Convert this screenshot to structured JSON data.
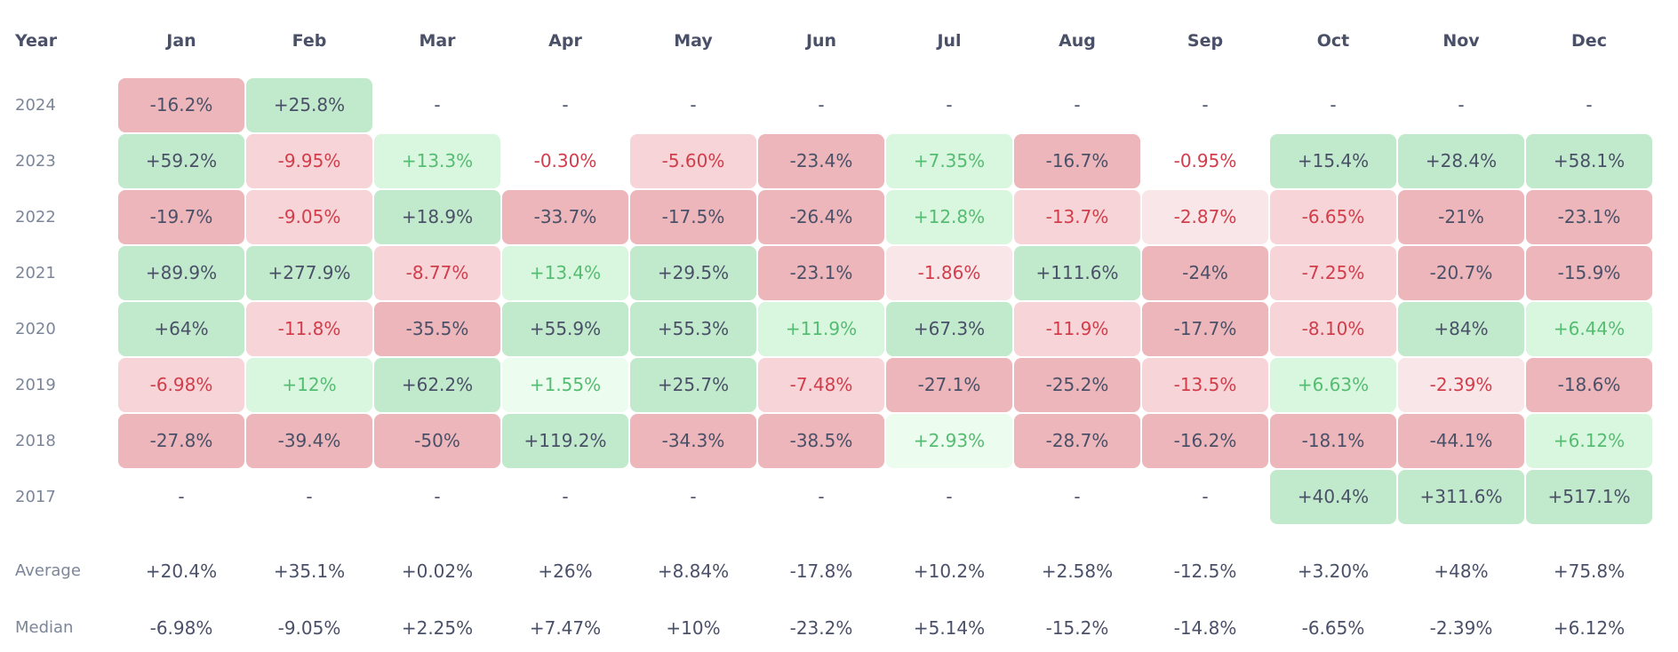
{
  "header": {
    "year_label": "Year",
    "months": [
      "Jan",
      "Feb",
      "Mar",
      "Apr",
      "May",
      "Jun",
      "Jul",
      "Aug",
      "Sep",
      "Oct",
      "Nov",
      "Dec"
    ]
  },
  "colors": {
    "red_text": "#d13d4a",
    "green_text": "#55bd72",
    "dark_text": "#4a5068",
    "red_strong_bg": "#ecb6ba",
    "red_light_bg": "#f6d4d8",
    "red_faint_bg": "#f9e6e8",
    "green_strong_bg": "#c1e9cb",
    "green_light_bg": "#d9f6df",
    "green_faint_bg": "#ecfcee"
  },
  "rows": [
    {
      "year": "2024",
      "cells": [
        {
          "v": "-16.2%",
          "lvl": "red3"
        },
        {
          "v": "+25.8%",
          "lvl": "green3"
        },
        {
          "v": "-",
          "lvl": "none"
        },
        {
          "v": "-",
          "lvl": "none"
        },
        {
          "v": "-",
          "lvl": "none"
        },
        {
          "v": "-",
          "lvl": "none"
        },
        {
          "v": "-",
          "lvl": "none"
        },
        {
          "v": "-",
          "lvl": "none"
        },
        {
          "v": "-",
          "lvl": "none"
        },
        {
          "v": "-",
          "lvl": "none"
        },
        {
          "v": "-",
          "lvl": "none"
        },
        {
          "v": "-",
          "lvl": "none"
        }
      ]
    },
    {
      "year": "2023",
      "cells": [
        {
          "v": "+59.2%",
          "lvl": "green3"
        },
        {
          "v": "-9.95%",
          "lvl": "red2"
        },
        {
          "v": "+13.3%",
          "lvl": "green2"
        },
        {
          "v": "-0.30%",
          "lvl": "red0"
        },
        {
          "v": "-5.60%",
          "lvl": "red2"
        },
        {
          "v": "-23.4%",
          "lvl": "red3"
        },
        {
          "v": "+7.35%",
          "lvl": "green2"
        },
        {
          "v": "-16.7%",
          "lvl": "red3"
        },
        {
          "v": "-0.95%",
          "lvl": "red0"
        },
        {
          "v": "+15.4%",
          "lvl": "green3"
        },
        {
          "v": "+28.4%",
          "lvl": "green3"
        },
        {
          "v": "+58.1%",
          "lvl": "green3"
        }
      ]
    },
    {
      "year": "2022",
      "cells": [
        {
          "v": "-19.7%",
          "lvl": "red3"
        },
        {
          "v": "-9.05%",
          "lvl": "red2"
        },
        {
          "v": "+18.9%",
          "lvl": "green3"
        },
        {
          "v": "-33.7%",
          "lvl": "red3"
        },
        {
          "v": "-17.5%",
          "lvl": "red3"
        },
        {
          "v": "-26.4%",
          "lvl": "red3"
        },
        {
          "v": "+12.8%",
          "lvl": "green2"
        },
        {
          "v": "-13.7%",
          "lvl": "red2"
        },
        {
          "v": "-2.87%",
          "lvl": "red1"
        },
        {
          "v": "-6.65%",
          "lvl": "red2"
        },
        {
          "v": "-21%",
          "lvl": "red3"
        },
        {
          "v": "-23.1%",
          "lvl": "red3"
        }
      ]
    },
    {
      "year": "2021",
      "cells": [
        {
          "v": "+89.9%",
          "lvl": "green3"
        },
        {
          "v": "+277.9%",
          "lvl": "green3"
        },
        {
          "v": "-8.77%",
          "lvl": "red2"
        },
        {
          "v": "+13.4%",
          "lvl": "green2"
        },
        {
          "v": "+29.5%",
          "lvl": "green3"
        },
        {
          "v": "-23.1%",
          "lvl": "red3"
        },
        {
          "v": "-1.86%",
          "lvl": "red1"
        },
        {
          "v": "+111.6%",
          "lvl": "green3"
        },
        {
          "v": "-24%",
          "lvl": "red3"
        },
        {
          "v": "-7.25%",
          "lvl": "red2"
        },
        {
          "v": "-20.7%",
          "lvl": "red3"
        },
        {
          "v": "-15.9%",
          "lvl": "red3"
        }
      ]
    },
    {
      "year": "2020",
      "cells": [
        {
          "v": "+64%",
          "lvl": "green3"
        },
        {
          "v": "-11.8%",
          "lvl": "red2"
        },
        {
          "v": "-35.5%",
          "lvl": "red3"
        },
        {
          "v": "+55.9%",
          "lvl": "green3"
        },
        {
          "v": "+55.3%",
          "lvl": "green3"
        },
        {
          "v": "+11.9%",
          "lvl": "green2"
        },
        {
          "v": "+67.3%",
          "lvl": "green3"
        },
        {
          "v": "-11.9%",
          "lvl": "red2"
        },
        {
          "v": "-17.7%",
          "lvl": "red3"
        },
        {
          "v": "-8.10%",
          "lvl": "red2"
        },
        {
          "v": "+84%",
          "lvl": "green3"
        },
        {
          "v": "+6.44%",
          "lvl": "green2"
        }
      ]
    },
    {
      "year": "2019",
      "cells": [
        {
          "v": "-6.98%",
          "lvl": "red2"
        },
        {
          "v": "+12%",
          "lvl": "green2"
        },
        {
          "v": "+62.2%",
          "lvl": "green3"
        },
        {
          "v": "+1.55%",
          "lvl": "green1"
        },
        {
          "v": "+25.7%",
          "lvl": "green3"
        },
        {
          "v": "-7.48%",
          "lvl": "red2"
        },
        {
          "v": "-27.1%",
          "lvl": "red3"
        },
        {
          "v": "-25.2%",
          "lvl": "red3"
        },
        {
          "v": "-13.5%",
          "lvl": "red2"
        },
        {
          "v": "+6.63%",
          "lvl": "green2"
        },
        {
          "v": "-2.39%",
          "lvl": "red1"
        },
        {
          "v": "-18.6%",
          "lvl": "red3"
        }
      ]
    },
    {
      "year": "2018",
      "cells": [
        {
          "v": "-27.8%",
          "lvl": "red3"
        },
        {
          "v": "-39.4%",
          "lvl": "red3"
        },
        {
          "v": "-50%",
          "lvl": "red3"
        },
        {
          "v": "+119.2%",
          "lvl": "green3"
        },
        {
          "v": "-34.3%",
          "lvl": "red3"
        },
        {
          "v": "-38.5%",
          "lvl": "red3"
        },
        {
          "v": "+2.93%",
          "lvl": "green1"
        },
        {
          "v": "-28.7%",
          "lvl": "red3"
        },
        {
          "v": "-16.2%",
          "lvl": "red3"
        },
        {
          "v": "-18.1%",
          "lvl": "red3"
        },
        {
          "v": "-44.1%",
          "lvl": "red3"
        },
        {
          "v": "+6.12%",
          "lvl": "green2"
        }
      ]
    },
    {
      "year": "2017",
      "cells": [
        {
          "v": "-",
          "lvl": "none"
        },
        {
          "v": "-",
          "lvl": "none"
        },
        {
          "v": "-",
          "lvl": "none"
        },
        {
          "v": "-",
          "lvl": "none"
        },
        {
          "v": "-",
          "lvl": "none"
        },
        {
          "v": "-",
          "lvl": "none"
        },
        {
          "v": "-",
          "lvl": "none"
        },
        {
          "v": "-",
          "lvl": "none"
        },
        {
          "v": "-",
          "lvl": "none"
        },
        {
          "v": "+40.4%",
          "lvl": "green3"
        },
        {
          "v": "+311.6%",
          "lvl": "green3"
        },
        {
          "v": "+517.1%",
          "lvl": "green3"
        }
      ]
    }
  ],
  "summary": [
    {
      "label": "Average",
      "values": [
        "+20.4%",
        "+35.1%",
        "+0.02%",
        "+26%",
        "+8.84%",
        "-17.8%",
        "+10.2%",
        "+2.58%",
        "-12.5%",
        "+3.20%",
        "+48%",
        "+75.8%"
      ]
    },
    {
      "label": "Median",
      "values": [
        "-6.98%",
        "-9.05%",
        "+2.25%",
        "+7.47%",
        "+10%",
        "-23.2%",
        "+5.14%",
        "-15.2%",
        "-14.8%",
        "-6.65%",
        "-2.39%",
        "+6.12%"
      ]
    }
  ]
}
